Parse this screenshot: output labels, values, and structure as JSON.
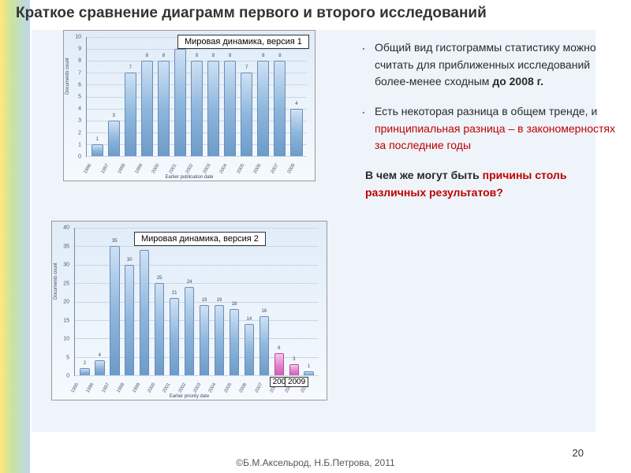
{
  "title": "Краткое сравнение диаграмм первого и второго исследований",
  "chart1": {
    "badge": "Мировая динамика, версия 1",
    "type": "bar",
    "categories": [
      "1996",
      "1997",
      "1998",
      "1999",
      "2000",
      "2001",
      "2002",
      "2003",
      "2004",
      "2005",
      "2006",
      "2007",
      "2008"
    ],
    "values": [
      1,
      3,
      7,
      8,
      8,
      9,
      8,
      8,
      8,
      7,
      8,
      8,
      4
    ],
    "bar_colors": [
      "blue",
      "blue",
      "blue",
      "blue",
      "blue",
      "blue",
      "blue",
      "blue",
      "blue",
      "blue",
      "blue",
      "blue",
      "blue"
    ],
    "ylim": [
      0,
      10
    ],
    "ytick_step": 1,
    "x_axis_title": "Earlier publication date",
    "y_axis_title": "Documents count",
    "grid_color": "#c9d7e5",
    "bg_top": "#e0ecf8",
    "bg_bottom": "#f6fafe"
  },
  "chart2": {
    "badge": "Мировая динамика, версия 2",
    "type": "bar",
    "categories": [
      "1995",
      "1996",
      "1997",
      "1998",
      "1999",
      "2000",
      "2001",
      "2002",
      "2003",
      "2004",
      "2005",
      "2006",
      "2007",
      "2008",
      "2009",
      "2010"
    ],
    "values": [
      2,
      4,
      35,
      30,
      34,
      25,
      21,
      24,
      19,
      19,
      18,
      14,
      16,
      6,
      3,
      1
    ],
    "bar_colors": [
      "blue",
      "blue",
      "blue",
      "blue",
      "blue",
      "blue",
      "blue",
      "blue",
      "blue",
      "blue",
      "blue",
      "blue",
      "blue",
      "pink",
      "pink",
      "blue"
    ],
    "ylim": [
      0,
      40
    ],
    "ytick_step": 5,
    "x_axis_title": "Earlier priority date",
    "y_axis_title": "Documents count",
    "grid_color": "#c9d7e5",
    "year_labels": [
      {
        "text": "2008",
        "cat_index": 13
      },
      {
        "text": "2009",
        "cat_index": 14
      }
    ]
  },
  "bullets": {
    "items": [
      {
        "pre": "Общий вид гистограммы статистику можно считать для приближенных исследований более-менее сходным ",
        "bold": "до 2008 г."
      },
      {
        "pre": "Есть некоторая разница в общем тренде, и ",
        "red": "принципиальная разница – в закономерностях за последние годы"
      }
    ],
    "closing_pre": "В чем же могут быть ",
    "closing_red": "причины столь различных результатов?"
  },
  "footer": "©Б.М.Аксельрод, Н.Б.Петрова, 2011",
  "page_number": "20",
  "colors": {
    "accent_blue_bar": "#8fb7dd",
    "accent_pink_bar": "#e07dc8",
    "content_bg": "#eef4fa",
    "title_color": "#333333",
    "red": "#c00000"
  }
}
